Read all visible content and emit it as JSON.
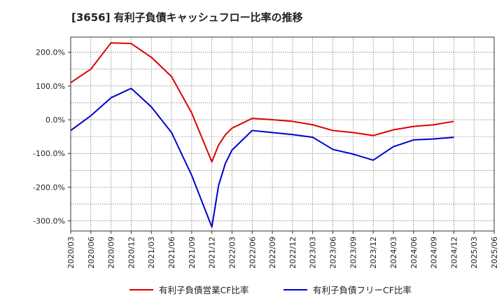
{
  "chart_data": {
    "type": "line",
    "title": "[3656]  有利子負債キャッシュフロー比率の推移",
    "x": [
      "2020/03",
      "2020/06",
      "2020/09",
      "2020/12",
      "2021/03",
      "2021/06",
      "2021/09",
      "2021/12",
      "2022/03",
      "2022/06",
      "2022/09",
      "2022/12",
      "2023/03",
      "2023/06",
      "2023/09",
      "2023/12",
      "2024/03",
      "2024/06",
      "2024/09",
      "2024/12",
      "2025/03",
      "2025/06"
    ],
    "ylim": [
      -330,
      245
    ],
    "yticks": [
      -300,
      -200,
      -100,
      0,
      100,
      200
    ],
    "ytick_labels": [
      "-300.0%",
      "-200.0%",
      "-100.0%",
      "0.0%",
      "100.0%",
      "200.0%"
    ],
    "grid": true,
    "legend_position": "bottom",
    "series": [
      {
        "name": "有利子負債営業CF比率",
        "color": "#dd0000",
        "points": [
          [
            "2020/03",
            110
          ],
          [
            "2020/06",
            150
          ],
          [
            "2020/09",
            228
          ],
          [
            "2020/12",
            226
          ],
          [
            "2021/03",
            185
          ],
          [
            "2021/06",
            128
          ],
          [
            "2021/09",
            20
          ],
          [
            "2021/12",
            -125
          ],
          [
            "2022/01",
            -75
          ],
          [
            "2022/02",
            -45
          ],
          [
            "2022/03",
            -25
          ],
          [
            "2022/06",
            4
          ],
          [
            "2022/09",
            0
          ],
          [
            "2022/12",
            -5
          ],
          [
            "2023/03",
            -15
          ],
          [
            "2023/06",
            -32
          ],
          [
            "2023/09",
            -38
          ],
          [
            "2023/12",
            -47
          ],
          [
            "2024/03",
            -30
          ],
          [
            "2024/06",
            -20
          ],
          [
            "2024/09",
            -15
          ],
          [
            "2024/12",
            -5
          ]
        ]
      },
      {
        "name": "有利子負債フリーCF比率",
        "color": "#0000cc",
        "points": [
          [
            "2020/03",
            -32
          ],
          [
            "2020/06",
            12
          ],
          [
            "2020/09",
            65
          ],
          [
            "2020/12",
            93
          ],
          [
            "2021/03",
            38
          ],
          [
            "2021/06",
            -38
          ],
          [
            "2021/09",
            -165
          ],
          [
            "2021/12",
            -318
          ],
          [
            "2022/01",
            -195
          ],
          [
            "2022/02",
            -130
          ],
          [
            "2022/03",
            -90
          ],
          [
            "2022/06",
            -32
          ],
          [
            "2022/09",
            -38
          ],
          [
            "2022/12",
            -44
          ],
          [
            "2023/03",
            -52
          ],
          [
            "2023/06",
            -88
          ],
          [
            "2023/09",
            -102
          ],
          [
            "2023/12",
            -120
          ],
          [
            "2024/03",
            -80
          ],
          [
            "2024/06",
            -60
          ],
          [
            "2024/09",
            -57
          ],
          [
            "2024/12",
            -52
          ]
        ]
      }
    ]
  }
}
